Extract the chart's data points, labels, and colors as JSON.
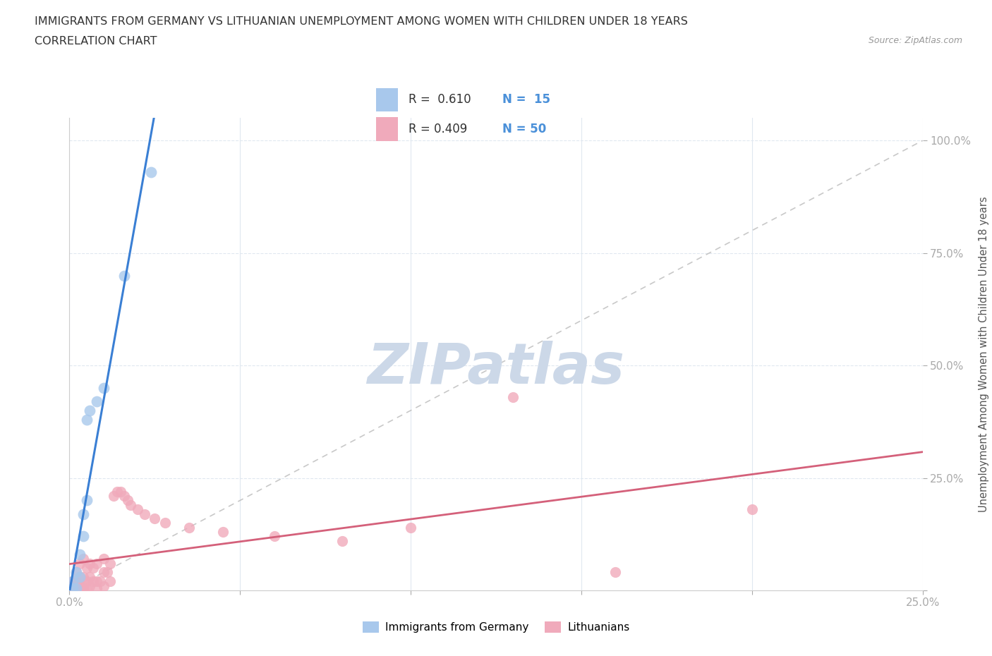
{
  "title": "IMMIGRANTS FROM GERMANY VS LITHUANIAN UNEMPLOYMENT AMONG WOMEN WITH CHILDREN UNDER 18 YEARS",
  "subtitle": "CORRELATION CHART",
  "source": "Source: ZipAtlas.com",
  "ylabel": "Unemployment Among Women with Children Under 18 years",
  "xlim": [
    0.0,
    0.25
  ],
  "ylim": [
    0.0,
    1.05
  ],
  "blue_color": "#a8c8ec",
  "pink_color": "#f0aabb",
  "blue_line_color": "#3a7fd4",
  "pink_line_color": "#d4607a",
  "trendline_dashed_color": "#bbbbbb",
  "watermark_color": "#ccd8e8",
  "background_color": "#ffffff",
  "grid_color": "#e0e8f0",
  "germany_x": [
    0.001,
    0.001,
    0.002,
    0.002,
    0.003,
    0.003,
    0.004,
    0.004,
    0.005,
    0.005,
    0.006,
    0.008,
    0.01,
    0.016,
    0.024
  ],
  "germany_y": [
    0.005,
    0.02,
    0.005,
    0.04,
    0.03,
    0.08,
    0.12,
    0.17,
    0.2,
    0.38,
    0.4,
    0.42,
    0.45,
    0.7,
    0.93
  ],
  "lithuanian_x": [
    0.001,
    0.001,
    0.001,
    0.002,
    0.002,
    0.002,
    0.003,
    0.003,
    0.003,
    0.003,
    0.004,
    0.004,
    0.004,
    0.004,
    0.005,
    0.005,
    0.005,
    0.006,
    0.006,
    0.006,
    0.007,
    0.007,
    0.008,
    0.008,
    0.008,
    0.009,
    0.01,
    0.01,
    0.01,
    0.011,
    0.012,
    0.012,
    0.013,
    0.014,
    0.015,
    0.016,
    0.017,
    0.018,
    0.02,
    0.022,
    0.025,
    0.028,
    0.035,
    0.045,
    0.06,
    0.08,
    0.1,
    0.13,
    0.16,
    0.2
  ],
  "lithuanian_y": [
    0.005,
    0.01,
    0.02,
    0.005,
    0.02,
    0.04,
    0.005,
    0.01,
    0.03,
    0.06,
    0.005,
    0.01,
    0.03,
    0.07,
    0.005,
    0.02,
    0.05,
    0.01,
    0.03,
    0.06,
    0.02,
    0.05,
    0.005,
    0.02,
    0.06,
    0.02,
    0.01,
    0.04,
    0.07,
    0.04,
    0.02,
    0.06,
    0.21,
    0.22,
    0.22,
    0.21,
    0.2,
    0.19,
    0.18,
    0.17,
    0.16,
    0.15,
    0.14,
    0.13,
    0.12,
    0.11,
    0.14,
    0.43,
    0.04,
    0.18
  ]
}
